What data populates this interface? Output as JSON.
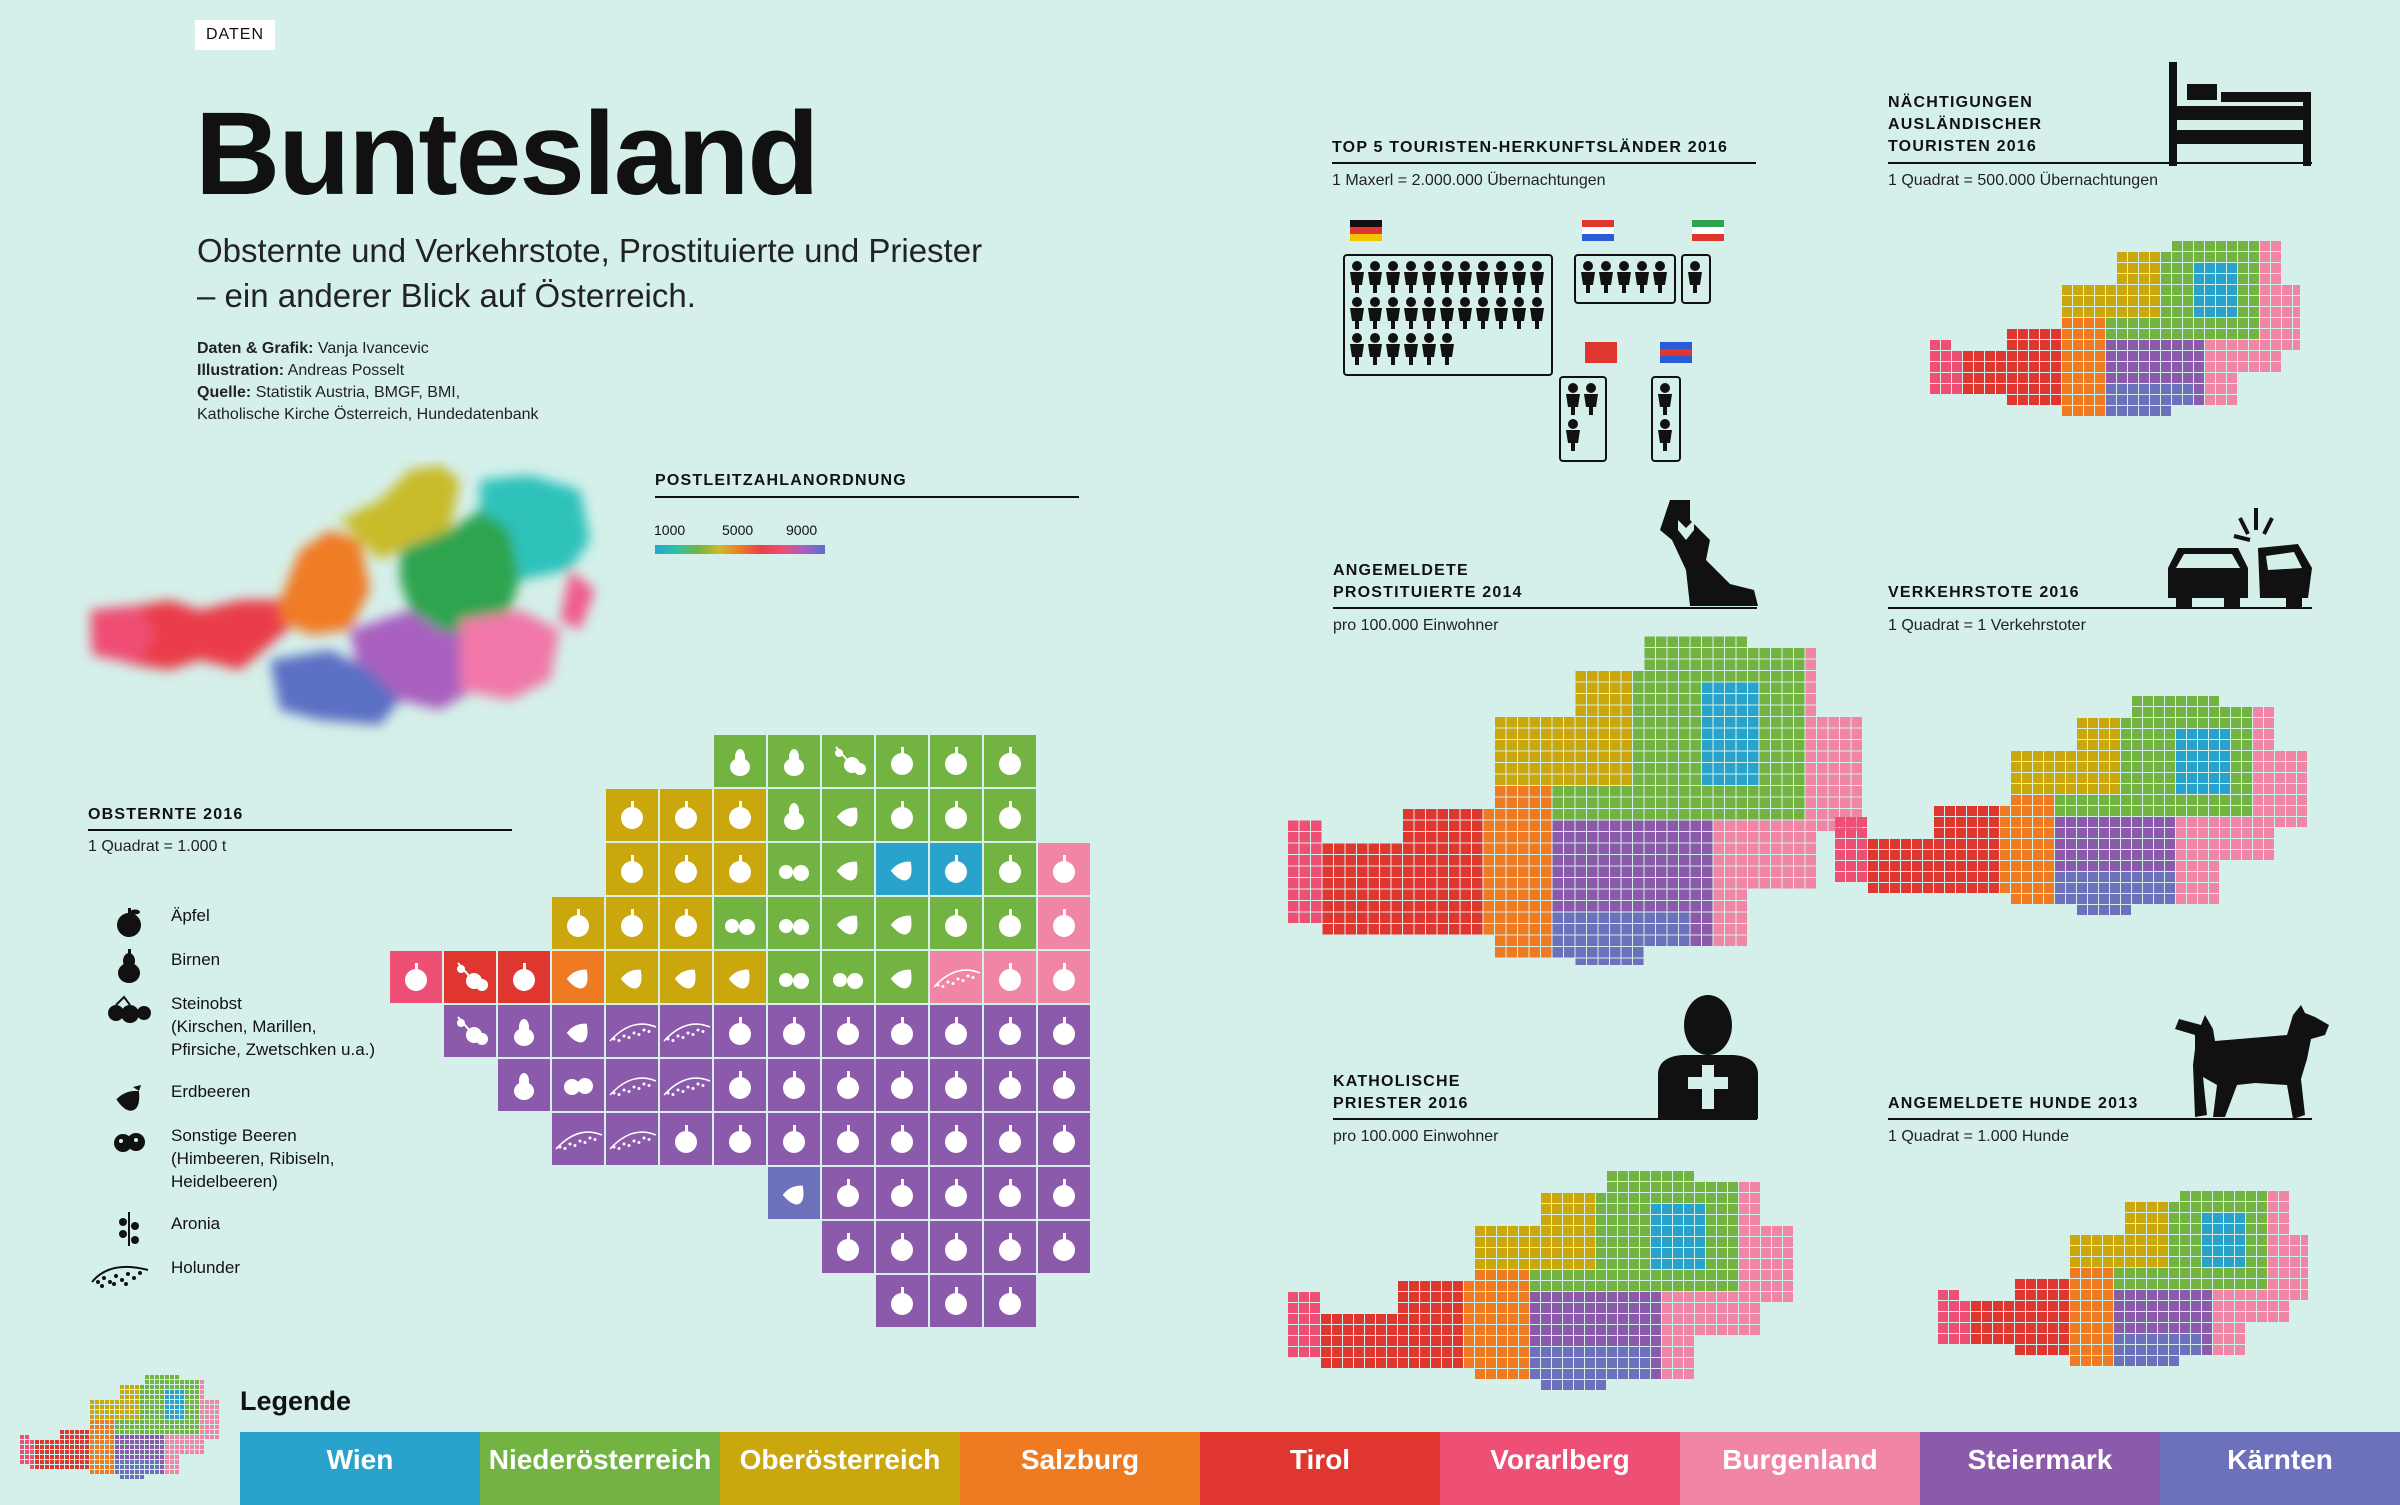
{
  "brand": "DATEN",
  "title": "Buntesland",
  "subtitle": "Obsternte und Verkehrstote, Prostituierte und Priester – ein anderer Blick auf Österreich.",
  "credits": [
    {
      "label": "Daten & Grafik:",
      "text": "Vanja Ivancevic"
    },
    {
      "label": "Illustration:",
      "text": "Andreas Posselt"
    },
    {
      "label": "Quelle:",
      "text": "Statistik Austria, BMGF, BMI,"
    },
    {
      "label": "",
      "text": "Katholische Kirche Österreich, Hundedatenbank"
    }
  ],
  "postleitzahl": {
    "title": "POSTLEITZAHLANORDNUNG",
    "ticks": [
      "1000",
      "5000",
      "9000"
    ]
  },
  "obsternte": {
    "title": "OBSTERNTE 2016",
    "unit": "1 Quadrat = 1.000 t",
    "legend": [
      {
        "icon": "apple-icon",
        "lines": [
          "Äpfel"
        ]
      },
      {
        "icon": "pear-icon",
        "lines": [
          "Birnen"
        ]
      },
      {
        "icon": "stone-fruit-icon",
        "lines": [
          "Steinobst",
          "(Kirschen, Marillen,",
          "Pfirsiche, Zwetschken u.a.)"
        ]
      },
      {
        "icon": "strawberry-icon",
        "lines": [
          "Erdbeeren"
        ]
      },
      {
        "icon": "berries-icon",
        "lines": [
          "Sonstige Beeren",
          "(Himbeeren, Ribiseln,",
          "Heidelbeeren)"
        ]
      },
      {
        "icon": "aronia-icon",
        "lines": [
          "Aronia"
        ]
      },
      {
        "icon": "elderberry-icon",
        "lines": [
          "Holunder"
        ]
      }
    ]
  },
  "touristen": {
    "title": "TOP 5 TOURISTEN-HERKUNFTSLÄNDER  2016",
    "unit": "1 Maxerl = 2.000.000 Übernachtungen"
  },
  "naechtigungen": {
    "title": [
      "NÄCHTIGUNGEN",
      "AUSLÄNDISCHER",
      "TOURISTEN 2016"
    ],
    "unit": "1 Quadrat = 500.000 Übernachtungen"
  },
  "prostituierte": {
    "title": [
      "ANGEMELDETE",
      "PROSTITUIERTE 2014"
    ],
    "unit": "pro 100.000 Einwohner"
  },
  "verkehrstote": {
    "title": [
      "VERKEHRSTOTE  2016"
    ],
    "unit": "1 Quadrat = 1 Verkehrstoter"
  },
  "priester": {
    "title": [
      "KATHOLISCHE",
      "PRIESTER 2016"
    ],
    "unit": "pro 100.000 Einwohner"
  },
  "hunde": {
    "title": [
      "ANGEMELDETE HUNDE 2013"
    ],
    "unit": "1 Quadrat = 1.000 Hunde"
  },
  "legend": {
    "label": "Legende",
    "states": [
      {
        "name": "Wien",
        "color": "#2aa3cc"
      },
      {
        "name": "Niederösterreich",
        "color": "#73b341"
      },
      {
        "name": "Oberösterreich",
        "color": "#c9a70d"
      },
      {
        "name": "Salzburg",
        "color": "#ee7a22"
      },
      {
        "name": "Tirol",
        "color": "#df3630"
      },
      {
        "name": "Vorarlberg",
        "color": "#ee4f75"
      },
      {
        "name": "Burgenland",
        "color": "#f185a6"
      },
      {
        "name": "Steiermark",
        "color": "#8b5aab"
      },
      {
        "name": "Kärnten",
        "color": "#6d70bb"
      }
    ]
  },
  "chart_data": [
    {
      "type": "heatmap",
      "title": "OBSTERNTE 2016",
      "unit": "1 Quadrat = 1.000 t",
      "rows": [
        [
          "",
          "",
          "",
          "",
          "",
          "",
          "N:pear",
          "N:pear",
          "N:aronia",
          "N:apple",
          "N:apple",
          "N:apple",
          ""
        ],
        [
          "",
          "",
          "",
          "",
          "O:apple",
          "O:apple",
          "O:apple",
          "N:pear",
          "N:strawberry",
          "N:apple",
          "N:apple",
          "N:apple",
          ""
        ],
        [
          "",
          "",
          "",
          "",
          "O:apple",
          "O:apple",
          "O:apple",
          "N:stone",
          "N:strawberry",
          "W:strawberry",
          "W:apple",
          "N:apple",
          "B:apple"
        ],
        [
          "",
          "",
          "",
          "O:apple",
          "O:apple",
          "O:apple",
          "N:stone",
          "N:stone",
          "N:strawberry",
          "N:strawberry",
          "N:apple",
          "N:apple",
          "B:apple"
        ],
        [
          "V:apple",
          "T:aronia",
          "T:apple",
          "S:strawberry",
          "O:strawberry",
          "O:strawberry",
          "O:strawberry",
          "N:stone",
          "N:stone",
          "N:strawberry",
          "B:elder",
          "B:apple",
          "B:apple"
        ],
        [
          "",
          "St:aronia",
          "St:pear",
          "St:strawberry",
          "St:elder",
          "St:elder",
          "St:apple",
          "St:apple",
          "St:apple",
          "St:apple",
          "St:apple",
          "St:apple",
          "St:apple"
        ],
        [
          "",
          "",
          "St:pear",
          "St:berries",
          "St:elder",
          "St:elder",
          "St:apple",
          "St:apple",
          "St:apple",
          "St:apple",
          "St:apple",
          "St:apple",
          "St:apple"
        ],
        [
          "",
          "",
          "",
          "St:elder",
          "St:elder",
          "St:apple",
          "St:apple",
          "St:apple",
          "St:apple",
          "St:apple",
          "St:apple",
          "St:apple",
          "St:apple"
        ],
        [
          "",
          "",
          "",
          "",
          "",
          "",
          "",
          "K:strawberry",
          "St:apple",
          "St:apple",
          "St:apple",
          "St:apple",
          "St:apple"
        ],
        [
          "",
          "",
          "",
          "",
          "",
          "",
          "",
          "",
          "St:apple",
          "St:apple",
          "St:apple",
          "St:apple",
          "St:apple"
        ],
        [
          "",
          "",
          "",
          "",
          "",
          "",
          "",
          "",
          "",
          "St:apple",
          "St:apple",
          "St:apple",
          ""
        ]
      ]
    },
    {
      "type": "bar",
      "title": "TOP 5 TOURISTEN-HERKUNFTSLÄNDER  2016",
      "unit": "1 Maxerl = 2.000.000 Übernachtungen",
      "categories": [
        "Deutschland",
        "Niederlande",
        "Italien",
        "Schweiz",
        "Vereinigtes Königreich"
      ],
      "values": [
        28,
        5,
        1,
        3,
        2
      ]
    }
  ]
}
